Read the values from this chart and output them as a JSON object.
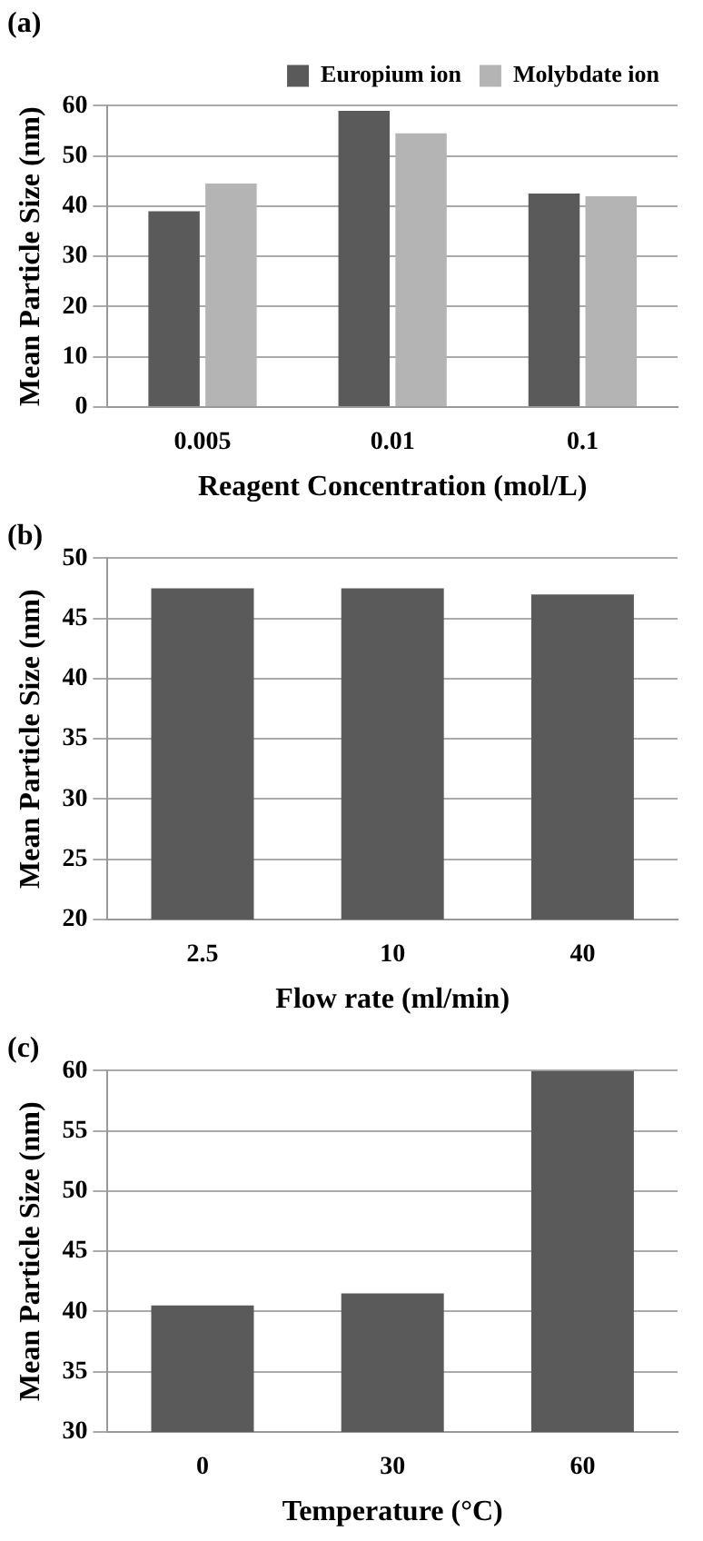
{
  "chart_data": [
    {
      "type": "bar",
      "title": "(a)",
      "xlabel": "Reagent Concentration (mol/L)",
      "ylabel": "Mean Particle Size (nm)",
      "categories": [
        "0.005",
        "0.01",
        "0.1"
      ],
      "series": [
        {
          "name": "Europium ion",
          "color": "#5a5a5a",
          "values": [
            39,
            59,
            42.5
          ]
        },
        {
          "name": "Molybdate ion",
          "color": "#b4b4b4",
          "values": [
            44.5,
            54.5,
            42
          ]
        }
      ],
      "ylim": [
        0,
        60
      ],
      "yticks": [
        0,
        10,
        20,
        30,
        40,
        50,
        60
      ],
      "grid": "y",
      "legend": "top right"
    },
    {
      "type": "bar",
      "title": "(b)",
      "xlabel": "Flow rate (ml/min)",
      "ylabel": "Mean Particle Size (nm)",
      "categories": [
        "2.5",
        "10",
        "40"
      ],
      "series": [
        {
          "color": "#5a5a5a",
          "values": [
            47.5,
            47.5,
            47
          ]
        }
      ],
      "ylim": [
        20,
        50
      ],
      "yticks": [
        20,
        25,
        30,
        35,
        40,
        45,
        50
      ],
      "grid": "y"
    },
    {
      "type": "bar",
      "title": "(c)",
      "xlabel": "Temperature (°C)",
      "ylabel": "Mean Particle Size (nm)",
      "categories": [
        "0",
        "30",
        "60"
      ],
      "series": [
        {
          "color": "#5a5a5a",
          "values": [
            40.5,
            41.5,
            60
          ]
        }
      ],
      "ylim": [
        30,
        60
      ],
      "yticks": [
        30,
        35,
        40,
        45,
        50,
        55,
        60
      ],
      "grid": "y"
    }
  ]
}
